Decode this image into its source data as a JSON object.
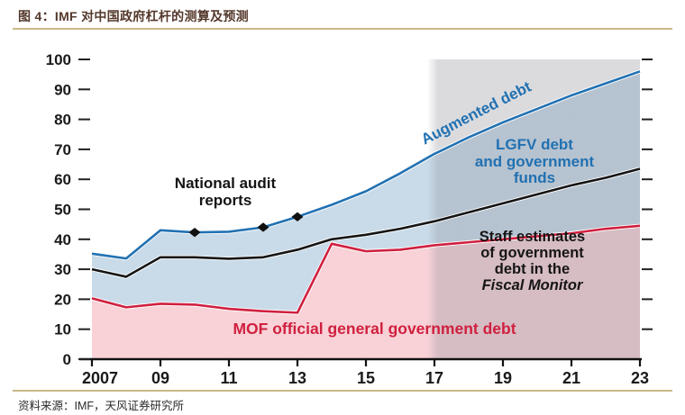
{
  "header": {
    "title": "图 4：IMF 对中国政府杠杆的测算及预测"
  },
  "footer": {
    "source": "资料来源：IMF，天风证券研究所"
  },
  "colors": {
    "title_text": "#54382b",
    "rule": "#c9b888",
    "augmented_blue": "#2171b2",
    "lgfv_fill": "#c9dbe9",
    "staff_black": "#151515",
    "mof_red": "#d0203f",
    "mof_fill": "#f8d2d7",
    "forecast_gray": "#8f8f99",
    "axis_text": "#1a1a1a"
  },
  "chart_data": {
    "type": "area",
    "title": "图 4：IMF 对中国政府杠杆的测算及预测",
    "xlabel": "",
    "ylabel": "",
    "ylim": [
      0,
      100
    ],
    "y_tick_step": 10,
    "grid": false,
    "x": [
      2007,
      2008,
      2009,
      2010,
      2011,
      2012,
      2013,
      2014,
      2015,
      2016,
      2017,
      2018,
      2019,
      2020,
      2021,
      2022,
      2023
    ],
    "x_tick_labels": [
      "2007",
      "09",
      "11",
      "13",
      "15",
      "17",
      "19",
      "21",
      "23"
    ],
    "series": [
      {
        "name": "Augmented debt",
        "color": "#2171b2",
        "fill": "#c9dbe9",
        "values": [
          35.2,
          33.6,
          43,
          42.3,
          42.5,
          44,
          47.5,
          51.5,
          56,
          62,
          68.5,
          74,
          79,
          83.5,
          88,
          92,
          96
        ]
      },
      {
        "name": "Staff estimates of government debt in the Fiscal Monitor",
        "color": "#151515",
        "fill": null,
        "values": [
          30,
          27.5,
          34,
          34,
          33.5,
          34,
          36.5,
          40,
          41.5,
          43.5,
          46,
          49,
          52,
          55,
          58,
          60.5,
          63.5
        ]
      },
      {
        "name": "MOF official general government debt",
        "color": "#d0203f",
        "fill": "#f8d2d7",
        "values": [
          20.3,
          17.3,
          18.5,
          18.2,
          16.8,
          16,
          15.5,
          38.5,
          36,
          36.5,
          38,
          39,
          40,
          41,
          42,
          43.5,
          44.5
        ]
      }
    ],
    "markers": {
      "label": "National audit reports",
      "shape": "diamond",
      "color": "#111111",
      "points": [
        [
          2010,
          42.3
        ],
        [
          2012,
          44
        ],
        [
          2013,
          47.5
        ]
      ]
    },
    "forecast_band": {
      "from": 2017,
      "to": 2023
    },
    "annotations": {
      "national_audit": "National audit\nreports",
      "augmented": "Augmented debt",
      "lgfv": "LGFV debt\nand government\nfunds",
      "staff_main": "Staff estimates\nof government\ndebt in the",
      "staff_italic": "Fiscal Monitor",
      "mof": "MOF official general government debt"
    }
  }
}
